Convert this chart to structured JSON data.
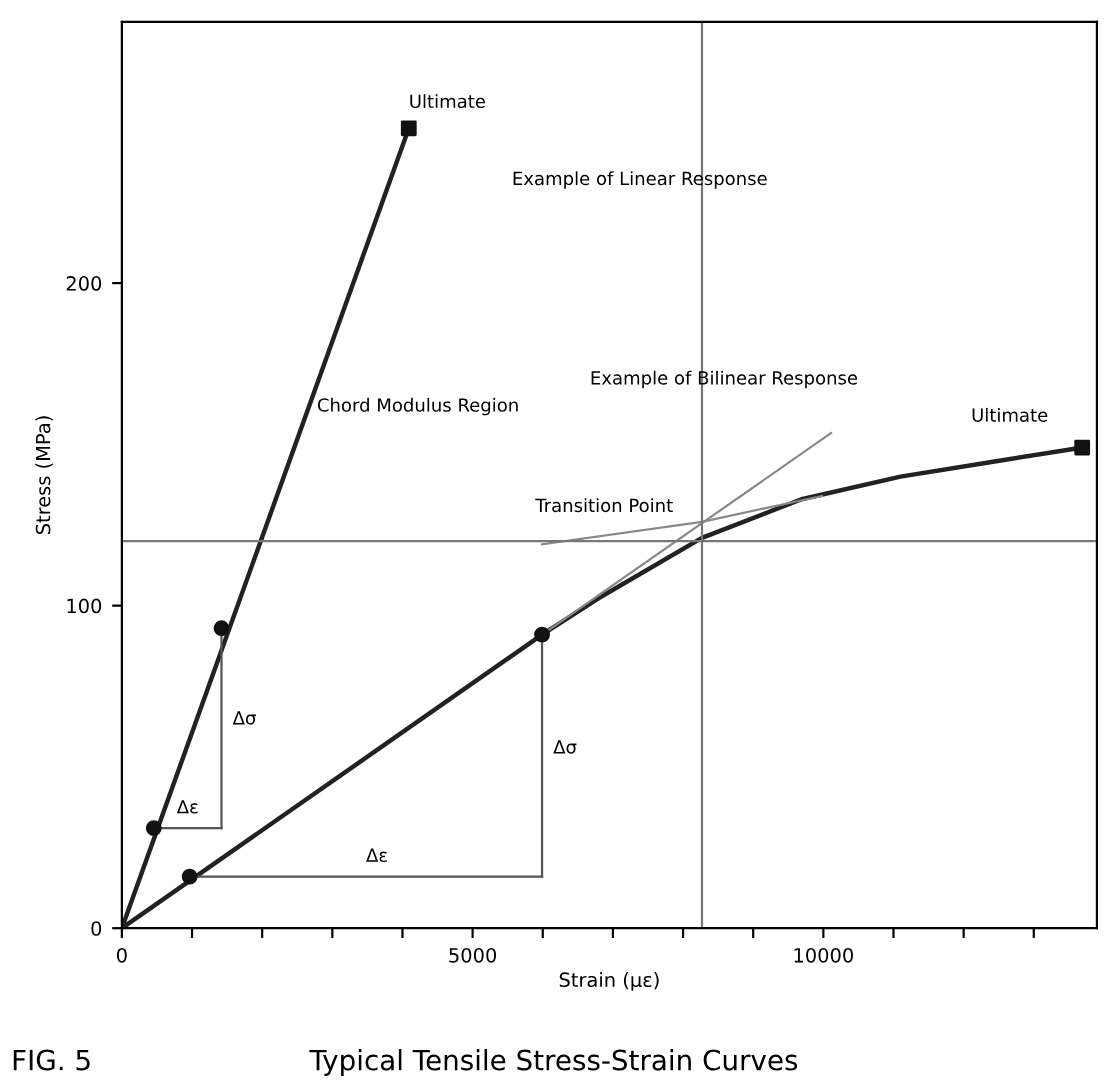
{
  "chart_data": {
    "type": "line",
    "title": "Typical Tensile Stress-Strain Curves",
    "subtitle": "FIG. 5",
    "xlabel": "Strain (με)",
    "ylabel": "Stress (MPa)",
    "xlim": [
      0,
      13900
    ],
    "ylim": [
      0,
      281
    ],
    "xticks": [
      0,
      {
        "value": 1000,
        "label": null
      },
      {
        "value": 2000,
        "label": null
      },
      {
        "value": 3000,
        "label": null
      },
      {
        "value": 4000,
        "label": null
      },
      5000,
      {
        "value": 6000,
        "label": null
      },
      {
        "value": 7000,
        "label": null
      },
      {
        "value": 8000,
        "label": null
      },
      {
        "value": 9000,
        "label": null
      },
      10000,
      {
        "value": 11000,
        "label": null
      },
      {
        "value": 12000,
        "label": null
      },
      {
        "value": 13000,
        "label": null
      }
    ],
    "yticks": [
      0,
      100,
      200
    ],
    "grid": false,
    "legend": false,
    "series": [
      {
        "color": "#222222",
        "x": [
          0,
          4090
        ],
        "values": [
          0,
          248
        ]
      },
      {
        "color": "#222222",
        "x": [
          0,
          5990,
          6850,
          8270,
          9690,
          11100,
          12530,
          13690
        ],
        "values": [
          0,
          91,
          103,
          121,
          133,
          140,
          145,
          149
        ]
      },
      {
        "color": "#888888",
        "x": [
          5990,
          10110
        ],
        "values": [
          91,
          153.5
        ]
      },
      {
        "color": "#888888",
        "x": [
          5990,
          8270,
          9980
        ],
        "values": [
          119,
          126,
          134
        ]
      },
      {
        "color": "#555555",
        "x": [
          1420,
          1420
        ],
        "values": [
          31,
          93
        ]
      },
      {
        "color": "#555555",
        "x": [
          455,
          1420
        ],
        "values": [
          31,
          31
        ]
      },
      {
        "color": "#555555",
        "x": [
          966,
          5990
        ],
        "values": [
          16,
          16
        ]
      },
      {
        "color": "#555555",
        "x": [
          5990,
          5990
        ],
        "values": [
          16,
          91
        ]
      },
      {
        "type": "scatter",
        "color": "#111111",
        "marker": "circle",
        "x": [
          455,
          1420,
          966,
          5990
        ],
        "values": [
          31,
          93,
          16,
          91
        ]
      },
      {
        "type": "scatter",
        "color": "#111111",
        "marker": "square",
        "x": [
          4090,
          13690
        ],
        "values": [
          248,
          149
        ]
      }
    ],
    "ref_lines": [
      {
        "axis": "y",
        "value": 120,
        "color": "#777777"
      },
      {
        "axis": "x",
        "value": 8270,
        "color": "#777777"
      }
    ],
    "annotations": [
      {
        "text": "Ultimate",
        "x": 4090,
        "y": 248
      },
      {
        "text": "Ultimate",
        "x": 13690,
        "y": 149
      },
      "Example of Linear Response",
      "Example of Bilinear Response",
      {
        "text": "Transition Point",
        "x": 8270,
        "y": 121
      },
      "Chord Modulus Region",
      {
        "text": "Δσ",
        "x": 1420,
        "y": 62
      },
      {
        "text": "Δε",
        "x": 940,
        "y": 31
      },
      {
        "text": "Δσ",
        "x": 5990,
        "y": 53
      },
      {
        "text": "Δε",
        "x": 3480,
        "y": 16
      }
    ]
  }
}
